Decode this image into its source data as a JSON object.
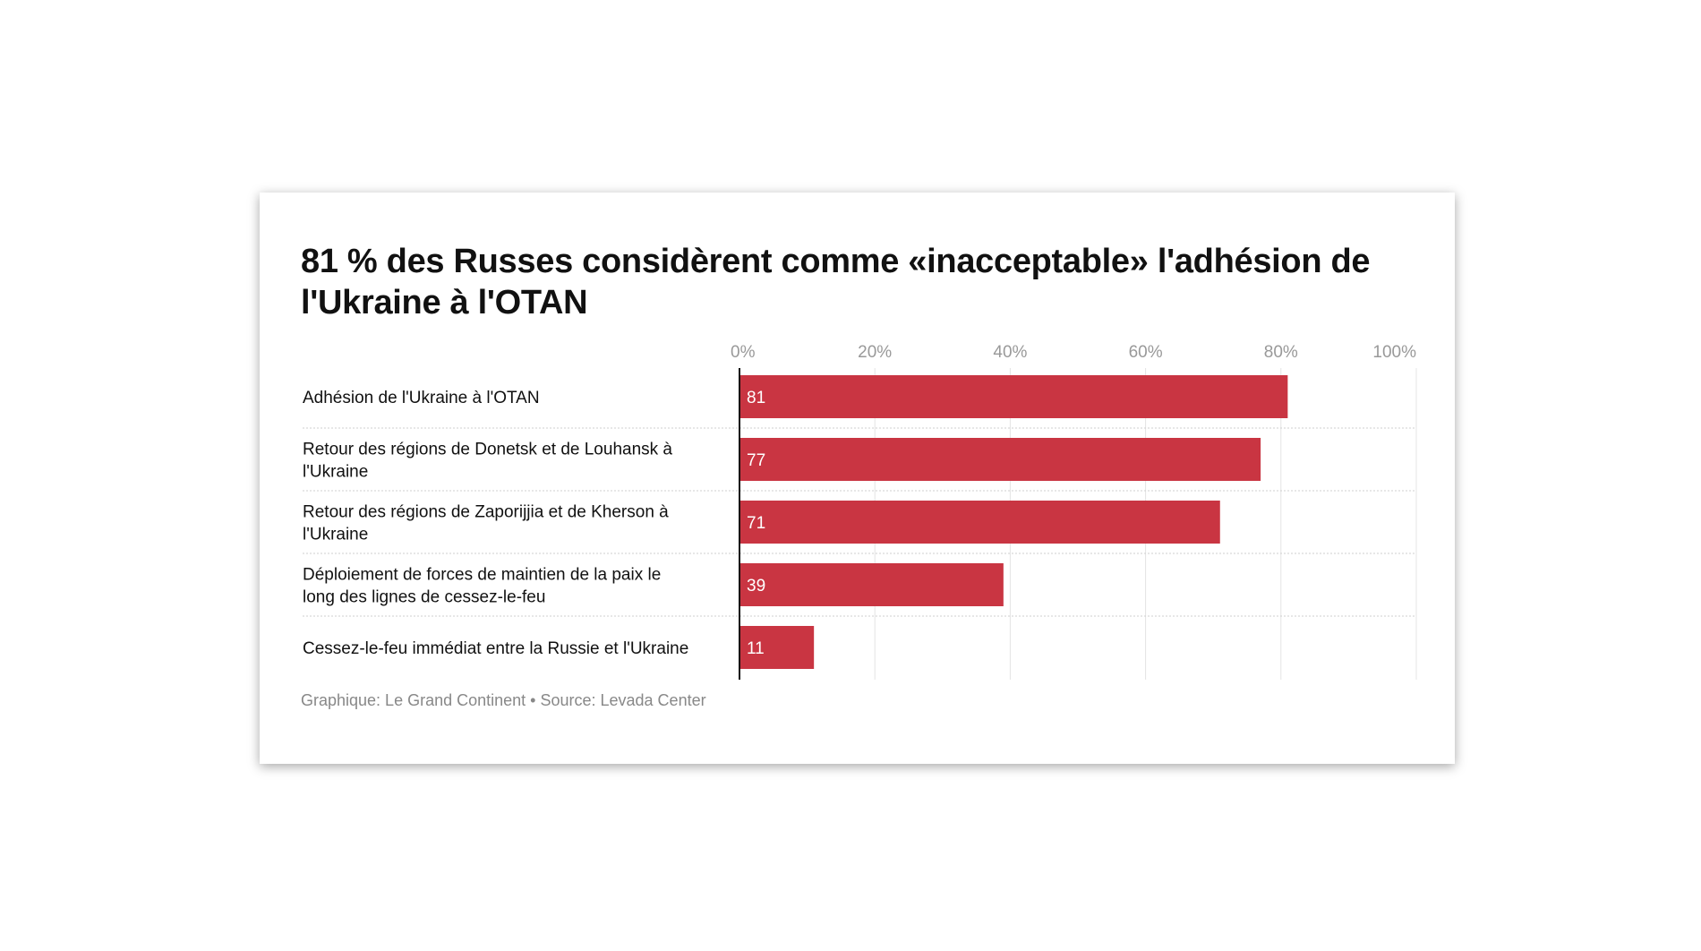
{
  "chart_data": {
    "type": "bar",
    "orientation": "horizontal",
    "title": "81 % des Russes considèrent comme «inacceptable» l'adhésion de l'Ukraine à l'OTAN",
    "categories": [
      [
        "Adhésion de l'Ukraine à l'OTAN"
      ],
      [
        "Retour des régions de Donetsk et de Louhansk à",
        "l'Ukraine"
      ],
      [
        "Retour des régions de Zaporijjia et de Kherson à",
        "l'Ukraine"
      ],
      [
        "Déploiement de forces de maintien de la paix le",
        "long des lignes de cessez-le-feu"
      ],
      [
        "Cessez-le-feu immédiat entre la Russie et l'Ukraine"
      ]
    ],
    "values": [
      81,
      77,
      71,
      39,
      11
    ],
    "value_labels": [
      "81",
      "77",
      "71",
      "39",
      "11"
    ],
    "xlim": [
      0,
      100
    ],
    "x_ticks": [
      0,
      20,
      40,
      60,
      80,
      100
    ],
    "x_tick_labels": [
      "0%",
      "20%",
      "40%",
      "60%",
      "80%",
      "100%"
    ],
    "axis_position": "top",
    "grid": true,
    "bar_color": "#c93542",
    "footer": "Graphique: Le Grand Continent • Source: Levada Center"
  }
}
